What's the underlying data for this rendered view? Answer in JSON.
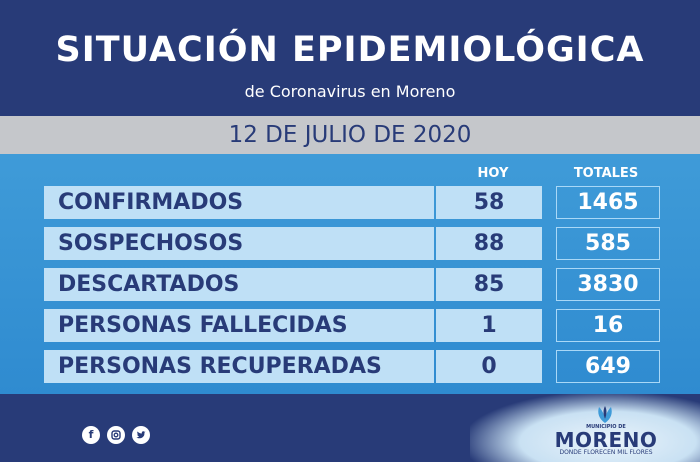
{
  "header": {
    "title": "SITUACIÓN EPIDEMIOLÓGICA",
    "subtitle": "de Coronavirus en Moreno"
  },
  "date": "12 DE JULIO DE 2020",
  "columns": {
    "hoy": "HOY",
    "totales": "TOTALES"
  },
  "rows": [
    {
      "label": "CONFIRMADOS",
      "hoy": "58",
      "totales": "1465"
    },
    {
      "label": "SOSPECHOSOS",
      "hoy": "88",
      "totales": "585"
    },
    {
      "label": "DESCARTADOS",
      "hoy": "85",
      "totales": "3830"
    },
    {
      "label": "PERSONAS FALLECIDAS",
      "hoy": "1",
      "totales": "16"
    },
    {
      "label": "PERSONAS RECUPERADAS",
      "hoy": "0",
      "totales": "649"
    }
  ],
  "footer": {
    "social_icons": [
      "facebook-icon",
      "instagram-icon",
      "twitter-icon"
    ],
    "logo": {
      "small_text": "MUNICIPIO DE",
      "name": "MORENO",
      "tagline": "DONDE FLORECEN MIL FLORES"
    }
  },
  "colors": {
    "navy": "#283b78",
    "blue": "#3f9bd8",
    "light_blue": "#bfe0f6",
    "gray": "#c5c7cb"
  }
}
